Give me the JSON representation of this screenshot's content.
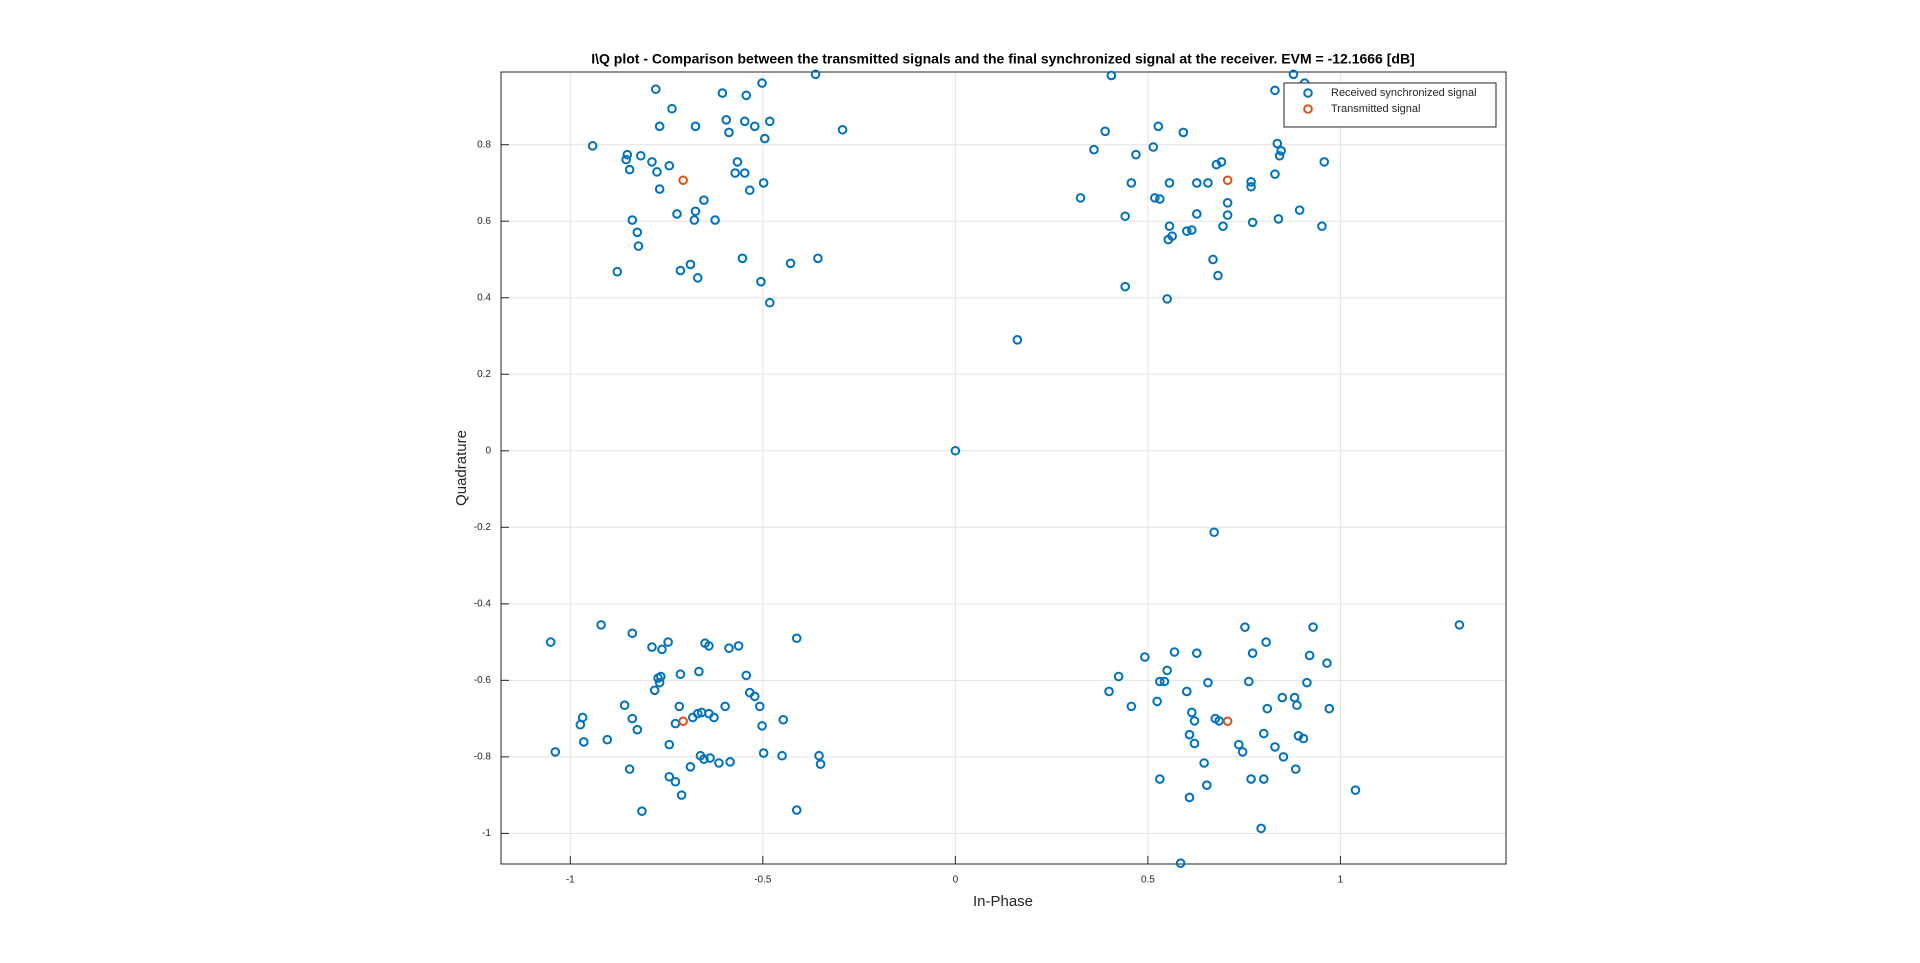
{
  "chart_data": {
    "type": "scatter",
    "title": "I\\Q plot - Comparison between the transmitted signals and the final synchronized signal at the receiver. EVM = -12.1666 [dB]",
    "xlabel": "In-Phase",
    "ylabel": "Quadrature",
    "xlim": [
      -1.18,
      1.43
    ],
    "ylim": [
      -1.08,
      0.99
    ],
    "xticks": [
      -1,
      -0.5,
      0,
      0.5,
      1
    ],
    "yticks": [
      -1,
      -0.8,
      -0.6,
      -0.4,
      -0.2,
      0,
      0.2,
      0.4,
      0.6,
      0.8
    ],
    "grid": true,
    "legend": "northeast",
    "series": [
      {
        "name": "Received synchronized signal",
        "color": "#0072BD",
        "x": [
          -0.778,
          -0.736,
          -0.605,
          -0.543,
          -0.502,
          -0.363,
          -0.942,
          -0.852,
          -0.855,
          -0.817,
          -0.788,
          -0.768,
          -0.675,
          -0.595,
          -0.588,
          -0.547,
          -0.521,
          -0.482,
          -0.495,
          -0.293,
          -0.846,
          -0.775,
          -0.743,
          -0.566,
          -0.572,
          -0.547,
          -0.768,
          -0.653,
          -0.534,
          -0.498,
          -0.723,
          -0.675,
          -0.678,
          -0.624,
          -0.839,
          -0.826,
          -0.823,
          -0.878,
          -0.714,
          -0.688,
          -0.669,
          -0.553,
          -0.505,
          -0.428,
          -0.357,
          -0.482,
          0.405,
          0.878,
          0.907,
          0.83,
          0.36,
          0.389,
          0.469,
          0.527,
          0.592,
          0.514,
          0.836,
          0.846,
          0.842,
          0.891,
          0.958,
          0.691,
          0.678,
          0.457,
          0.556,
          0.627,
          0.656,
          0.768,
          0.768,
          0.83,
          0.894,
          0.325,
          0.518,
          0.531,
          0.707,
          0.627,
          0.614,
          0.707,
          0.695,
          0.556,
          0.601,
          0.772,
          0.839,
          0.952,
          0.553,
          0.563,
          0.669,
          0.682,
          0.441,
          0.441,
          0.55,
          0.161,
          0,
          0.672,
          1.309,
          -1.051,
          -0.92,
          -0.839,
          -0.788,
          -0.762,
          -0.746,
          -0.65,
          -0.64,
          -0.588,
          -0.563,
          -0.412,
          -0.772,
          -0.768,
          -0.765,
          -0.781,
          -0.859,
          -0.839,
          -0.826,
          -0.714,
          -0.666,
          -0.543,
          -0.534,
          -0.521,
          -0.508,
          -0.598,
          -0.968,
          -0.974,
          -0.965,
          -1.039,
          -0.904,
          -0.717,
          -0.682,
          -0.669,
          -0.659,
          -0.64,
          -0.627,
          -0.502,
          -0.447,
          -0.743,
          -0.727,
          -0.662,
          -0.653,
          -0.637,
          -0.585,
          -0.614,
          -0.688,
          -0.498,
          -0.45,
          -0.354,
          -0.35,
          -0.846,
          -0.743,
          -0.727,
          -0.711,
          -0.814,
          -0.412,
          0.752,
          0.929,
          0.569,
          0.627,
          0.424,
          0.492,
          0.55,
          0.531,
          0.543,
          0.656,
          0.772,
          0.807,
          0.92,
          0.965,
          0.913,
          0.762,
          0.601,
          0.399,
          0.457,
          0.524,
          0.614,
          0.621,
          0.675,
          0.685,
          0.971,
          0.81,
          0.849,
          0.881,
          0.887,
          0.801,
          0.83,
          0.852,
          0.891,
          0.608,
          0.621,
          0.736,
          0.746,
          0.904,
          0.768,
          0.801,
          0.884,
          0.531,
          0.653,
          0.608,
          0.794,
          1.039,
          0.585,
          0.646
        ],
        "y": [
          0.945,
          0.894,
          0.935,
          0.929,
          0.961,
          0.984,
          0.797,
          0.774,
          0.761,
          0.771,
          0.755,
          0.848,
          0.848,
          0.865,
          0.832,
          0.861,
          0.848,
          0.861,
          0.816,
          0.839,
          0.735,
          0.729,
          0.745,
          0.755,
          0.726,
          0.726,
          0.684,
          0.655,
          0.681,
          0.7,
          0.619,
          0.626,
          0.603,
          0.603,
          0.603,
          0.571,
          0.535,
          0.468,
          0.471,
          0.487,
          0.452,
          0.503,
          0.442,
          0.49,
          0.503,
          0.387,
          0.981,
          0.984,
          0.961,
          0.942,
          0.787,
          0.835,
          0.774,
          0.848,
          0.832,
          0.794,
          0.803,
          0.784,
          0.771,
          0.868,
          0.755,
          0.755,
          0.748,
          0.7,
          0.7,
          0.7,
          0.7,
          0.703,
          0.69,
          0.723,
          0.629,
          0.661,
          0.661,
          0.658,
          0.648,
          0.619,
          0.577,
          0.616,
          0.587,
          0.587,
          0.574,
          0.597,
          0.606,
          0.587,
          0.552,
          0.561,
          0.5,
          0.458,
          0.613,
          0.429,
          0.397,
          0.29,
          0,
          -0.213,
          -0.455,
          -0.5,
          -0.455,
          -0.477,
          -0.513,
          -0.519,
          -0.5,
          -0.503,
          -0.51,
          -0.516,
          -0.51,
          -0.49,
          -0.594,
          -0.606,
          -0.59,
          -0.626,
          -0.665,
          -0.7,
          -0.729,
          -0.584,
          -0.577,
          -0.587,
          -0.632,
          -0.642,
          -0.668,
          -0.668,
          -0.697,
          -0.716,
          -0.761,
          -0.787,
          -0.755,
          -0.668,
          -0.697,
          -0.687,
          -0.684,
          -0.687,
          -0.697,
          -0.719,
          -0.703,
          -0.768,
          -0.713,
          -0.797,
          -0.806,
          -0.803,
          -0.813,
          -0.816,
          -0.826,
          -0.79,
          -0.797,
          -0.797,
          -0.819,
          -0.832,
          -0.852,
          -0.865,
          -0.9,
          -0.942,
          -0.939,
          -0.461,
          -0.461,
          -0.526,
          -0.529,
          -0.59,
          -0.539,
          -0.574,
          -0.603,
          -0.603,
          -0.606,
          -0.529,
          -0.5,
          -0.535,
          -0.555,
          -0.606,
          -0.603,
          -0.629,
          -0.629,
          -0.668,
          -0.655,
          -0.684,
          -0.706,
          -0.7,
          -0.706,
          -0.674,
          -0.674,
          -0.645,
          -0.645,
          -0.665,
          -0.739,
          -0.774,
          -0.8,
          -0.745,
          -0.742,
          -0.765,
          -0.768,
          -0.787,
          -0.752,
          -0.858,
          -0.858,
          -0.832,
          -0.858,
          -0.874,
          -0.906,
          -0.987,
          -0.887,
          -1.078,
          -0.816
        ]
      },
      {
        "name": "Transmitted signal",
        "color": "#D95319",
        "x": [
          -0.707,
          0.707,
          -0.707,
          0.707
        ],
        "y": [
          0.707,
          0.707,
          -0.707,
          -0.707
        ]
      }
    ]
  }
}
